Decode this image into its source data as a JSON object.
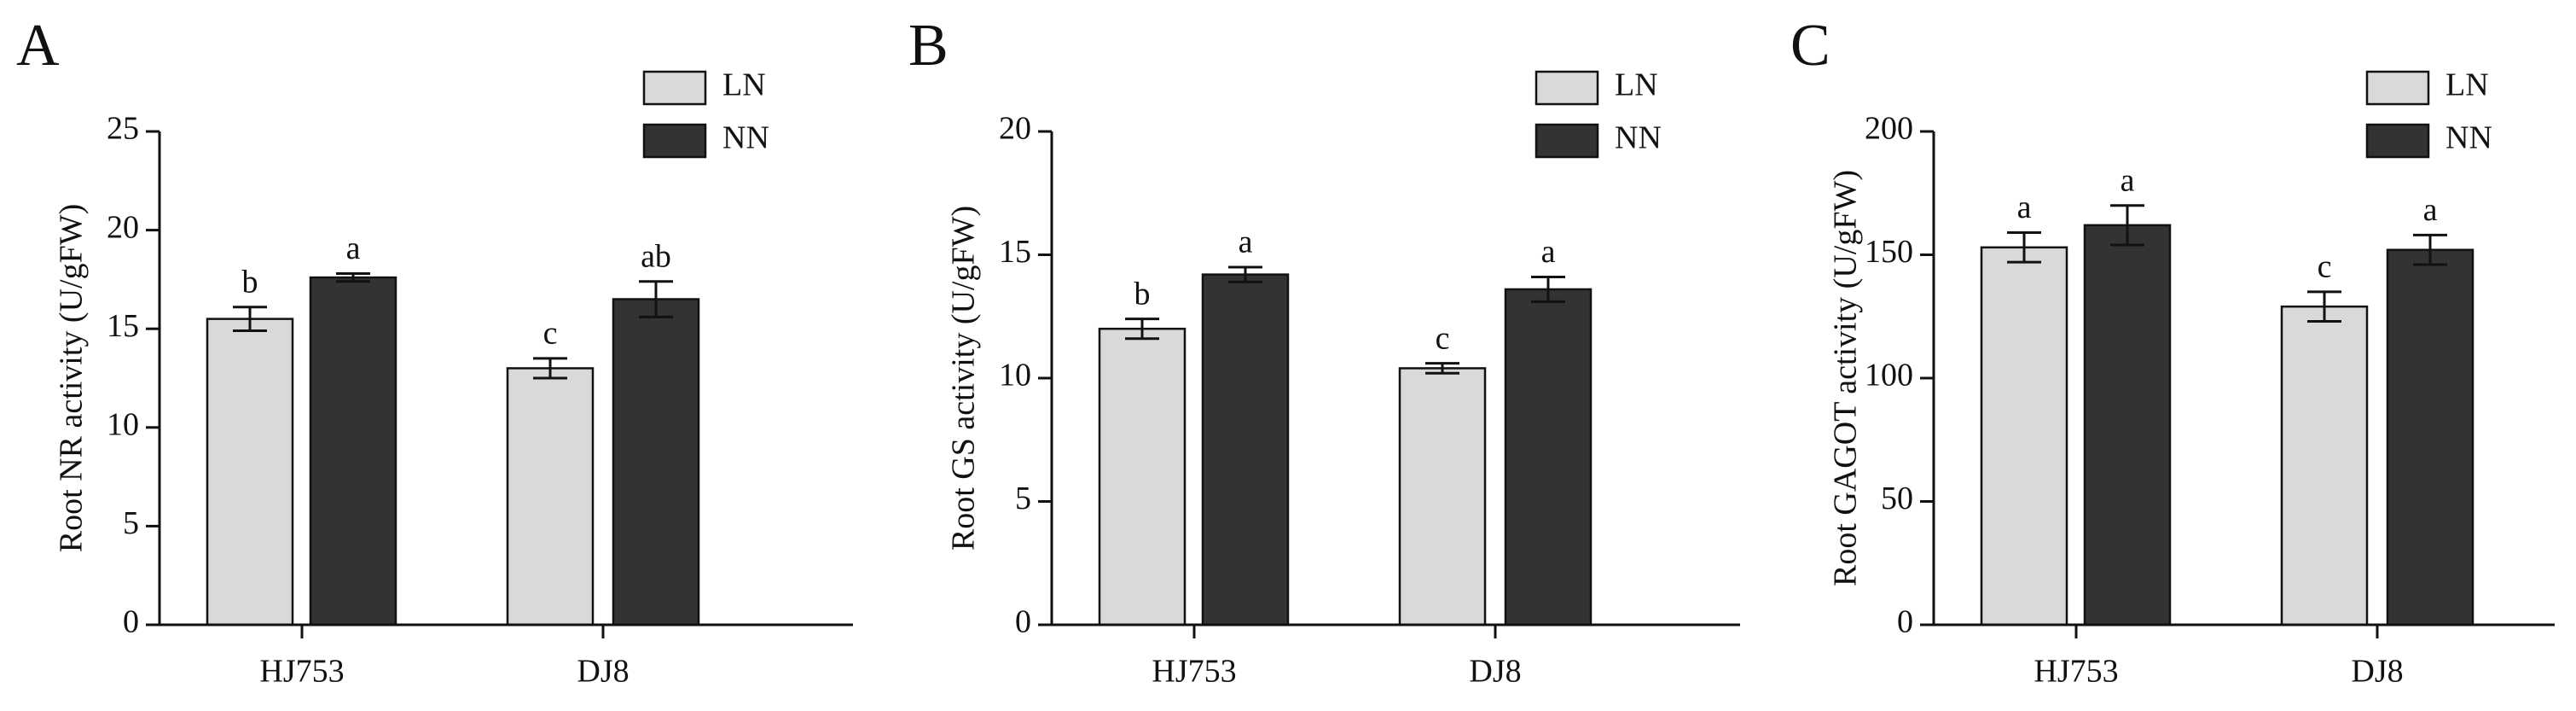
{
  "chart_data": [
    {
      "type": "bar",
      "panel_label": "A",
      "ylabel": "Root NR activity (U/gFW)",
      "categories": [
        "HJ753",
        "DJ8"
      ],
      "series": [
        {
          "name": "LN",
          "color": "#d9d9d9",
          "values": [
            15.5,
            13.0
          ],
          "errors": [
            0.6,
            0.5
          ],
          "letters": [
            "b",
            "c"
          ]
        },
        {
          "name": "NN",
          "color": "#333333",
          "values": [
            17.6,
            16.5
          ],
          "errors": [
            0.2,
            0.9
          ],
          "letters": [
            "a",
            "ab"
          ]
        }
      ],
      "ylim": [
        0,
        25
      ],
      "yticks": [
        0,
        5,
        10,
        15,
        20,
        25
      ],
      "legend": "upper right"
    },
    {
      "type": "bar",
      "panel_label": "B",
      "ylabel": "Root GS activity (U/gFW)",
      "categories": [
        "HJ753",
        "DJ8"
      ],
      "series": [
        {
          "name": "LN",
          "color": "#d9d9d9",
          "values": [
            12.0,
            10.4
          ],
          "errors": [
            0.4,
            0.2
          ],
          "letters": [
            "b",
            "c"
          ]
        },
        {
          "name": "NN",
          "color": "#333333",
          "values": [
            14.2,
            13.6
          ],
          "errors": [
            0.3,
            0.5
          ],
          "letters": [
            "a",
            "a"
          ]
        }
      ],
      "ylim": [
        0,
        20
      ],
      "yticks": [
        0,
        5,
        10,
        15,
        20
      ],
      "legend": "upper right"
    },
    {
      "type": "bar",
      "panel_label": "C",
      "ylabel": "Root GAGOT activity (U/gFW)",
      "categories": [
        "HJ753",
        "DJ8"
      ],
      "series": [
        {
          "name": "LN",
          "color": "#d9d9d9",
          "values": [
            153,
            129
          ],
          "errors": [
            6,
            6
          ],
          "letters": [
            "a",
            "c"
          ]
        },
        {
          "name": "NN",
          "color": "#333333",
          "values": [
            162,
            152
          ],
          "errors": [
            8,
            6
          ],
          "letters": [
            "a",
            "a"
          ]
        }
      ],
      "ylim": [
        0,
        200
      ],
      "yticks": [
        0,
        50,
        100,
        150,
        200
      ],
      "legend": "upper right"
    }
  ]
}
